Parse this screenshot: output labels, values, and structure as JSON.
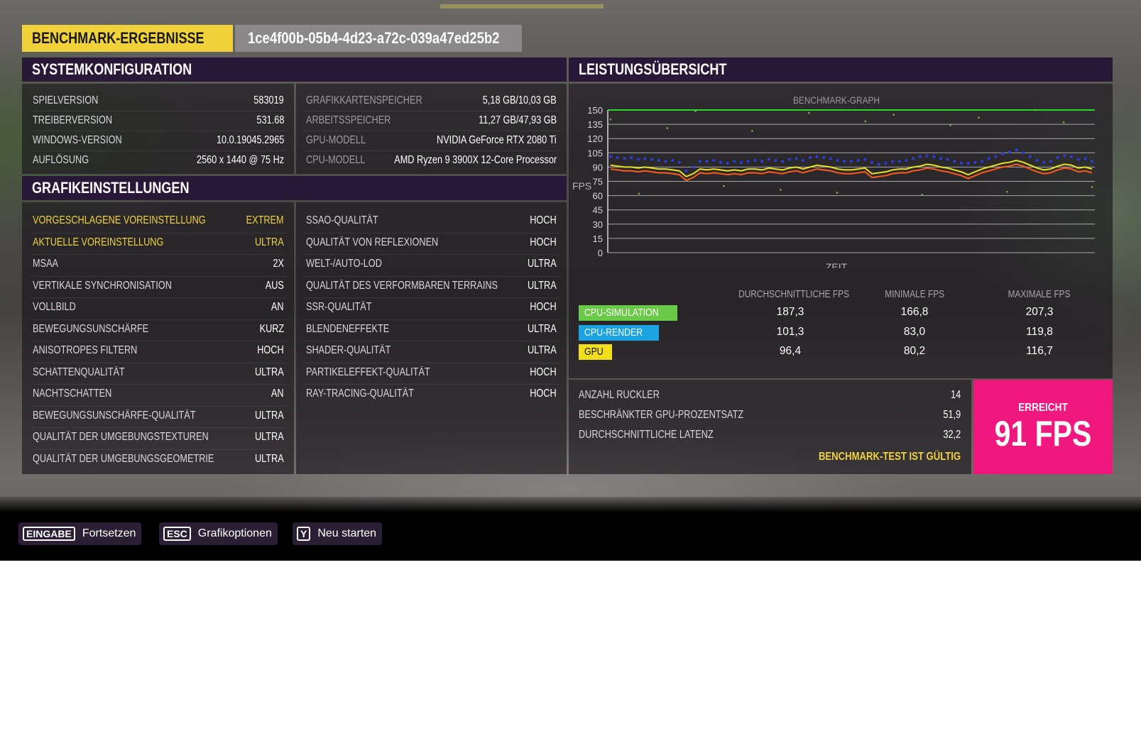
{
  "header": {
    "title": "BENCHMARK-ERGEBNISSE",
    "run_id": "1ce4f00b-05b4-4d23-a72c-039a47ed25b2"
  },
  "system": {
    "title": "SYSTEMKONFIGURATION",
    "left": [
      {
        "label": "SPIELVERSION",
        "value": "583019"
      },
      {
        "label": "TREIBERVERSION",
        "value": "531.68"
      },
      {
        "label": "WINDOWS-VERSION",
        "value": "10.0.19045.2965"
      },
      {
        "label": "AUFLÖSUNG",
        "value": "2560 x 1440 @ 75 Hz"
      }
    ],
    "right": [
      {
        "label": "GRAFIKKARTENSPEICHER",
        "value": "5,18 GB/10,03 GB"
      },
      {
        "label": "ARBEITSSPEICHER",
        "value": "11,27 GB/47,93 GB"
      },
      {
        "label": "GPU-MODELL",
        "value": "NVIDIA GeForce RTX 2080 Ti"
      },
      {
        "label": "CPU-MODELL",
        "value": "AMD Ryzen 9 3900X 12-Core Processor"
      }
    ]
  },
  "graphics": {
    "title": "GRAFIKEINSTELLUNGEN",
    "left": [
      {
        "label": "VORGESCHLAGENE VOREINSTELLUNG",
        "value": "EXTREM"
      },
      {
        "label": "AKTUELLE VOREINSTELLUNG",
        "value": "ULTRA"
      },
      {
        "label": "MSAA",
        "value": "2X"
      },
      {
        "label": "VERTIKALE SYNCHRONISATION",
        "value": "AUS"
      },
      {
        "label": "VOLLBILD",
        "value": "AN"
      },
      {
        "label": "BEWEGUNGSUNSCHÄRFE",
        "value": "KURZ"
      },
      {
        "label": "ANISOTROPES FILTERN",
        "value": "HOCH"
      },
      {
        "label": "SCHATTENQUALITÄT",
        "value": "ULTRA"
      },
      {
        "label": "NACHTSCHATTEN",
        "value": "AN"
      },
      {
        "label": "BEWEGUNGSUNSCHÄRFE-QUALITÄT",
        "value": "ULTRA"
      },
      {
        "label": "QUALITÄT DER UMGEBUNGSTEXTUREN",
        "value": "ULTRA"
      },
      {
        "label": "QUALITÄT DER UMGEBUNGSGEOMETRIE",
        "value": "ULTRA"
      }
    ],
    "right": [
      {
        "label": "SSAO-QUALITÄT",
        "value": "HOCH"
      },
      {
        "label": "QUALITÄT VON REFLEXIONEN",
        "value": "HOCH"
      },
      {
        "label": "WELT-/AUTO-LOD",
        "value": "ULTRA"
      },
      {
        "label": "QUALITÄT DES VERFORMBAREN TERRAINS",
        "value": "ULTRA"
      },
      {
        "label": "SSR-QUALITÄT",
        "value": "HOCH"
      },
      {
        "label": "BLENDENEFFEKTE",
        "value": "ULTRA"
      },
      {
        "label": "SHADER-QUALITÄT",
        "value": "ULTRA"
      },
      {
        "label": "PARTIKELEFFEKT-QUALITÄT",
        "value": "HOCH"
      },
      {
        "label": "RAY-TRACING-QUALITÄT",
        "value": "HOCH"
      }
    ]
  },
  "performance": {
    "title": "LEISTUNGSÜBERSICHT",
    "stats_headers": [
      "DURCHSCHNITTLICHE FPS",
      "MINIMALE FPS",
      "MAXIMALE FPS"
    ],
    "stats_rows": [
      {
        "name": "CPU-SIMULATION",
        "color": "#6bc94a",
        "text_color": "#ffffff",
        "avg": "187,3",
        "min": "166,8",
        "max": "207,3"
      },
      {
        "name": "CPU-RENDER",
        "color": "#1aa3e0",
        "text_color": "#ffffff",
        "avg": "101,3",
        "min": "83,0",
        "max": "119,8"
      },
      {
        "name": "GPU",
        "color": "#f2de1a",
        "text_color": "#111111",
        "avg": "96,4",
        "min": "80,2",
        "max": "116,7"
      }
    ],
    "summary": [
      {
        "label": "ANZAHL RUCKLER",
        "value": "14"
      },
      {
        "label": "BESCHRÄNKTER GPU-PROZENTSATZ",
        "value": "51,9"
      },
      {
        "label": "DURCHSCHNITTLICHE LATENZ",
        "value": "32,2"
      }
    ],
    "valid_text": "BENCHMARK-TEST IST GÜLTIG",
    "achieved_label": "ERREICHT",
    "achieved_value": "91 FPS"
  },
  "chart_data": {
    "type": "line",
    "title": "BENCHMARK-GRAPH",
    "xlabel": "ZEIT",
    "ylabel": "FPS",
    "ylim": [
      0,
      150
    ],
    "yticks": [
      0,
      15,
      30,
      45,
      60,
      75,
      90,
      105,
      120,
      135,
      150
    ],
    "grid": true,
    "reference_line": {
      "value": 150,
      "color": "#2bd62b"
    },
    "series": [
      {
        "color": "#2a3ee6",
        "style": "scatter",
        "values": [
          101,
          100,
          99,
          100,
          98,
          99,
          98,
          97,
          96,
          97,
          95,
          86,
          90,
          96,
          96,
          97,
          95,
          94,
          96,
          95,
          96,
          97,
          96,
          98,
          97,
          96,
          98,
          99,
          97,
          100,
          101,
          100,
          99,
          97,
          96,
          96,
          97,
          98,
          95,
          93,
          94,
          96,
          96,
          97,
          99,
          101,
          102,
          101,
          99,
          98,
          96,
          94,
          94,
          95,
          96,
          99,
          101,
          104,
          106,
          108,
          105,
          101,
          97,
          95,
          96,
          100,
          102,
          101,
          98,
          99,
          96
        ]
      },
      {
        "color": "#e8e21f",
        "style": "line",
        "values": [
          92,
          91,
          90,
          90,
          89,
          90,
          89,
          88,
          88,
          87,
          86,
          80,
          83,
          88,
          87,
          88,
          87,
          86,
          87,
          86,
          88,
          88,
          87,
          89,
          88,
          87,
          89,
          90,
          88,
          90,
          92,
          91,
          90,
          88,
          87,
          87,
          88,
          89,
          83,
          84,
          85,
          87,
          88,
          88,
          90,
          91,
          93,
          92,
          90,
          89,
          87,
          85,
          82,
          85,
          88,
          90,
          92,
          94,
          95,
          97,
          95,
          92,
          89,
          87,
          88,
          91,
          93,
          92,
          89,
          90,
          88
        ]
      },
      {
        "color": "#ff5a1e",
        "style": "line",
        "values": [
          88,
          87,
          86,
          86,
          85,
          86,
          85,
          84,
          84,
          83,
          82,
          76,
          79,
          84,
          83,
          84,
          83,
          82,
          83,
          82,
          84,
          84,
          83,
          85,
          84,
          83,
          85,
          86,
          84,
          86,
          88,
          87,
          86,
          84,
          83,
          83,
          84,
          85,
          79,
          80,
          81,
          83,
          84,
          84,
          86,
          87,
          89,
          88,
          86,
          85,
          83,
          81,
          78,
          81,
          84,
          86,
          88,
          90,
          91,
          93,
          91,
          88,
          85,
          83,
          84,
          87,
          89,
          88,
          85,
          86,
          84
        ]
      },
      {
        "color": "#7cb342",
        "style": "dots",
        "values": [
          140,
          62,
          131,
          149,
          70,
          128,
          66,
          147,
          63,
          138,
          145,
          61,
          134,
          142,
          64,
          150,
          137,
          69
        ]
      }
    ]
  },
  "footer": [
    {
      "key": "EINGABE",
      "label": "Fortsetzen"
    },
    {
      "key": "ESC",
      "label": "Grafikoptionen"
    },
    {
      "key": "Y",
      "label": "Neu starten"
    }
  ]
}
